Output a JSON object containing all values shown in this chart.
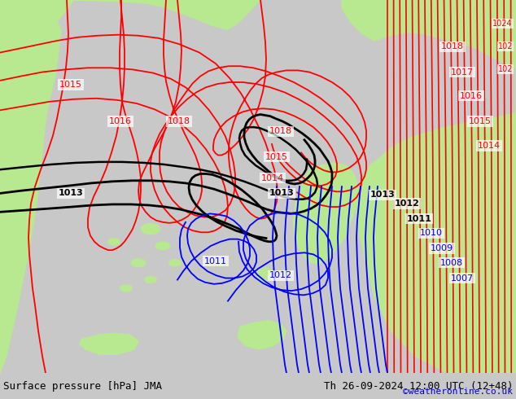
{
  "title_left": "Surface pressure [hPa] JMA",
  "title_right": "Th 26-09-2024 12:00 UTC (12+48)",
  "copyright": "©weatheronline.co.uk",
  "bg_color": "#c8c8c8",
  "land_color": "#b8e890",
  "sea_color": "#d8d8d8",
  "bottom_bar_color": "#d8d8d8",
  "text_color_left": "#000000",
  "text_color_right": "#000000",
  "copyright_color": "#0000cc",
  "figsize": [
    6.34,
    4.9
  ],
  "dpi": 100
}
